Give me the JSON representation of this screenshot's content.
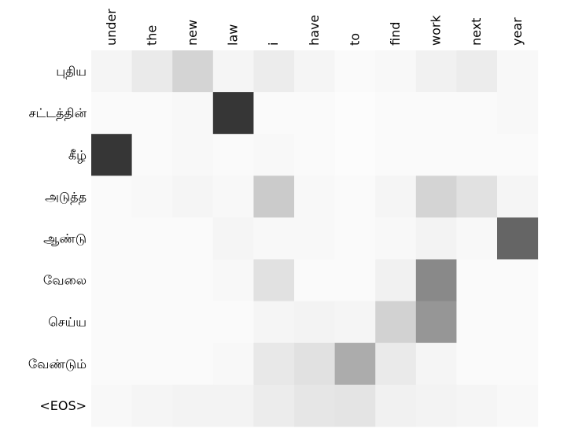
{
  "chart_data": {
    "type": "heatmap",
    "title": "",
    "xlabel": "",
    "ylabel": "",
    "colormap": "greys",
    "value_range": [
      0,
      1
    ],
    "x": [
      "under",
      "the",
      "new",
      "law",
      "i",
      "have",
      "to",
      "find",
      "work",
      "next",
      "year"
    ],
    "y": [
      "புதிய",
      "சட்டத்தின்",
      "கீழ்",
      "அடுத்த",
      "ஆண்டு",
      "வேலை",
      "செய்ய",
      "வேண்டும்",
      "<EOS>"
    ],
    "values": [
      [
        0.03,
        0.08,
        0.18,
        0.03,
        0.07,
        0.03,
        0.01,
        0.02,
        0.05,
        0.07,
        0.02
      ],
      [
        0.01,
        0.01,
        0.02,
        0.89,
        0.01,
        0.01,
        0.0,
        0.01,
        0.01,
        0.01,
        0.02
      ],
      [
        0.89,
        0.01,
        0.02,
        0.01,
        0.02,
        0.01,
        0.0,
        0.01,
        0.01,
        0.01,
        0.01
      ],
      [
        0.01,
        0.02,
        0.03,
        0.02,
        0.22,
        0.02,
        0.01,
        0.03,
        0.18,
        0.12,
        0.03
      ],
      [
        0.01,
        0.01,
        0.01,
        0.03,
        0.02,
        0.02,
        0.01,
        0.02,
        0.04,
        0.02,
        0.68
      ],
      [
        0.01,
        0.01,
        0.01,
        0.02,
        0.12,
        0.01,
        0.01,
        0.05,
        0.52,
        0.01,
        0.01
      ],
      [
        0.01,
        0.01,
        0.01,
        0.01,
        0.03,
        0.04,
        0.03,
        0.19,
        0.46,
        0.01,
        0.01
      ],
      [
        0.01,
        0.01,
        0.01,
        0.02,
        0.09,
        0.12,
        0.36,
        0.08,
        0.03,
        0.01,
        0.01
      ],
      [
        0.02,
        0.03,
        0.04,
        0.04,
        0.07,
        0.1,
        0.11,
        0.05,
        0.04,
        0.03,
        0.02
      ]
    ]
  }
}
